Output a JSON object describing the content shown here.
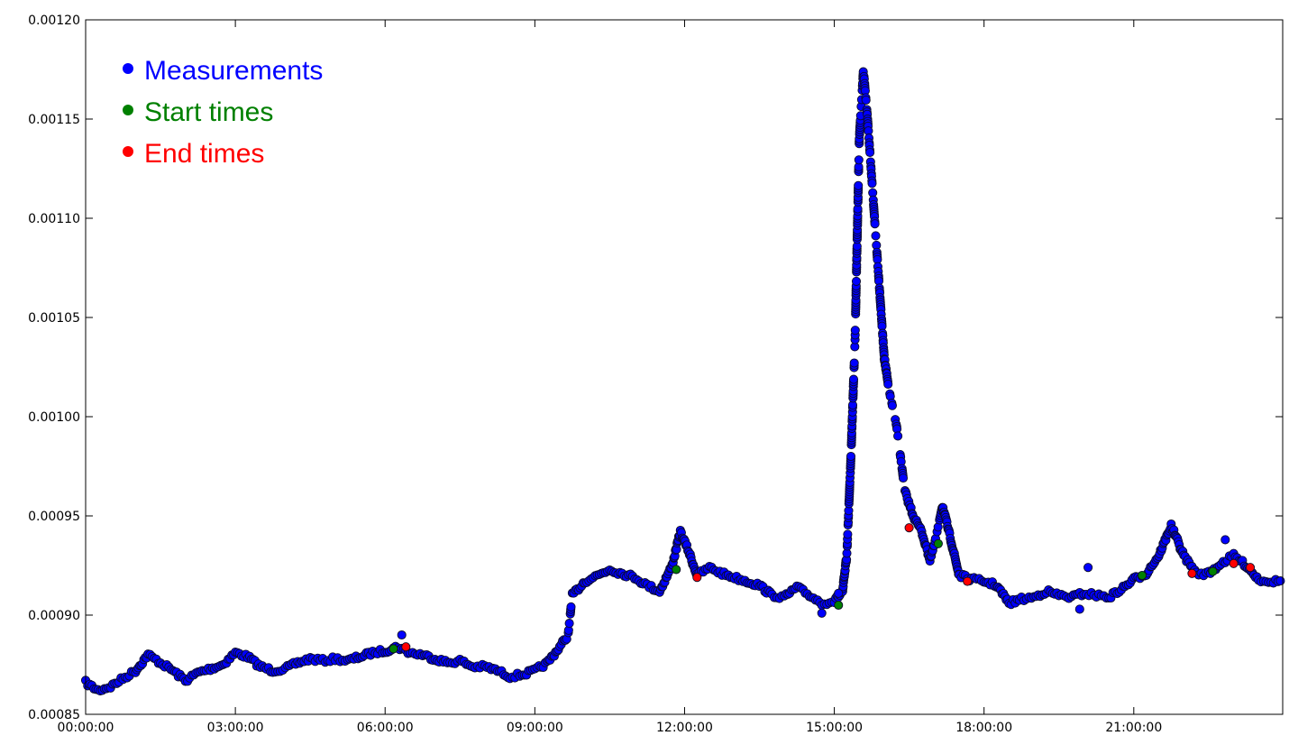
{
  "chart_data": {
    "type": "scatter",
    "title": "",
    "xlabel": "",
    "ylabel": "",
    "x_format": "HH:MM:SS",
    "xlim": [
      "00:00:00",
      "23:59:00"
    ],
    "ylim": [
      0.00085,
      0.0012
    ],
    "grid": false,
    "legend_position": "upper-left",
    "x_ticks": [
      "00:00:00",
      "03:00:00",
      "06:00:00",
      "09:00:00",
      "12:00:00",
      "15:00:00",
      "18:00:00",
      "21:00:00"
    ],
    "y_ticks": [
      "0.00085",
      "0.00090",
      "0.00095",
      "0.00100",
      "0.00105",
      "0.00110",
      "0.00115",
      "0.00120"
    ],
    "series": [
      {
        "name": "Measurements",
        "color": "#0000ff",
        "profile": [
          [
            "00:00:00",
            0.000866
          ],
          [
            "00:15:00",
            0.000862
          ],
          [
            "00:30:00",
            0.000864
          ],
          [
            "00:45:00",
            0.000868
          ],
          [
            "01:00:00",
            0.000872
          ],
          [
            "01:15:00",
            0.00088
          ],
          [
            "01:30:00",
            0.000876
          ],
          [
            "01:45:00",
            0.000872
          ],
          [
            "02:00:00",
            0.000867
          ],
          [
            "02:15:00",
            0.000871
          ],
          [
            "02:30:00",
            0.000873
          ],
          [
            "02:45:00",
            0.000875
          ],
          [
            "03:00:00",
            0.000881
          ],
          [
            "03:15:00",
            0.000879
          ],
          [
            "03:30:00",
            0.000874
          ],
          [
            "03:45:00",
            0.000872
          ],
          [
            "04:00:00",
            0.000873
          ],
          [
            "04:15:00",
            0.000876
          ],
          [
            "04:30:00",
            0.000878
          ],
          [
            "04:45:00",
            0.000877
          ],
          [
            "05:00:00",
            0.000878
          ],
          [
            "05:15:00",
            0.000877
          ],
          [
            "05:30:00",
            0.000879
          ],
          [
            "05:45:00",
            0.000881
          ],
          [
            "06:00:00",
            0.000882
          ],
          [
            "06:15:00",
            0.000884
          ],
          [
            "06:30:00",
            0.000881
          ],
          [
            "06:45:00",
            0.00088
          ],
          [
            "07:00:00",
            0.000878
          ],
          [
            "07:15:00",
            0.000876
          ],
          [
            "07:30:00",
            0.000877
          ],
          [
            "07:45:00",
            0.000874
          ],
          [
            "08:00:00",
            0.000874
          ],
          [
            "08:15:00",
            0.000872
          ],
          [
            "08:30:00",
            0.000869
          ],
          [
            "08:45:00",
            0.00087
          ],
          [
            "09:00:00",
            0.000872
          ],
          [
            "09:15:00",
            0.000876
          ],
          [
            "09:30:00",
            0.000884
          ],
          [
            "09:40:00",
            0.00089
          ],
          [
            "09:45:00",
            0.00091
          ],
          [
            "10:00:00",
            0.000917
          ],
          [
            "10:15:00",
            0.00092
          ],
          [
            "10:30:00",
            0.000923
          ],
          [
            "10:45:00",
            0.000921
          ],
          [
            "11:00:00",
            0.000919
          ],
          [
            "11:15:00",
            0.000915
          ],
          [
            "11:30:00",
            0.000912
          ],
          [
            "11:45:00",
            0.000925
          ],
          [
            "11:55:00",
            0.000942
          ],
          [
            "12:05:00",
            0.000932
          ],
          [
            "12:15:00",
            0.00092
          ],
          [
            "12:30:00",
            0.000924
          ],
          [
            "12:45:00",
            0.000921
          ],
          [
            "13:00:00",
            0.000919
          ],
          [
            "13:15:00",
            0.000917
          ],
          [
            "13:30:00",
            0.000915
          ],
          [
            "13:45:00",
            0.00091
          ],
          [
            "14:00:00",
            0.000909
          ],
          [
            "14:15:00",
            0.000914
          ],
          [
            "14:30:00",
            0.00091
          ],
          [
            "14:45:00",
            0.000906
          ],
          [
            "15:00:00",
            0.000907
          ],
          [
            "15:10:00",
            0.000912
          ],
          [
            "15:15:00",
            0.00093
          ],
          [
            "15:20:00",
            0.00098
          ],
          [
            "15:25:00",
            0.00104
          ],
          [
            "15:30:00",
            0.00114
          ],
          [
            "15:35:00",
            0.001175
          ],
          [
            "15:40:00",
            0.00115
          ],
          [
            "15:45:00",
            0.00112
          ],
          [
            "15:50:00",
            0.00109
          ],
          [
            "15:55:00",
            0.00106
          ],
          [
            "16:00:00",
            0.00103
          ],
          [
            "16:05:00",
            0.001015
          ],
          [
            "16:15:00",
            0.000995
          ],
          [
            "16:25:00",
            0.000962
          ],
          [
            "16:35:00",
            0.00095
          ],
          [
            "16:45:00",
            0.000942
          ],
          [
            "16:55:00",
            0.000928
          ],
          [
            "17:00:00",
            0.000935
          ],
          [
            "17:10:00",
            0.000955
          ],
          [
            "17:20:00",
            0.000938
          ],
          [
            "17:30:00",
            0.00092
          ],
          [
            "17:45:00",
            0.000918
          ],
          [
            "18:00:00",
            0.000917
          ],
          [
            "18:15:00",
            0.000915
          ],
          [
            "18:30:00",
            0.000906
          ],
          [
            "18:45:00",
            0.000908
          ],
          [
            "19:00:00",
            0.000909
          ],
          [
            "19:15:00",
            0.000912
          ],
          [
            "19:30:00",
            0.00091
          ],
          [
            "19:45:00",
            0.000909
          ],
          [
            "20:00:00",
            0.000911
          ],
          [
            "20:15:00",
            0.00091
          ],
          [
            "20:30:00",
            0.000909
          ],
          [
            "20:45:00",
            0.000913
          ],
          [
            "21:00:00",
            0.000918
          ],
          [
            "21:15:00",
            0.000921
          ],
          [
            "21:30:00",
            0.00093
          ],
          [
            "21:45:00",
            0.000945
          ],
          [
            "22:00:00",
            0.00093
          ],
          [
            "22:15:00",
            0.000921
          ],
          [
            "22:30:00",
            0.000921
          ],
          [
            "22:45:00",
            0.000926
          ],
          [
            "23:00:00",
            0.00093
          ],
          [
            "23:15:00",
            0.000925
          ],
          [
            "23:30:00",
            0.000918
          ],
          [
            "23:45:00",
            0.000917
          ],
          [
            "23:59:00",
            0.000917
          ]
        ],
        "outliers": [
          [
            "06:20:00",
            0.00089
          ],
          [
            "14:45:00",
            0.000901
          ],
          [
            "19:55:00",
            0.000903
          ],
          [
            "20:05:00",
            0.000924
          ],
          [
            "22:50:00",
            0.000938
          ],
          [
            "15:05:00",
            0.000911
          ]
        ]
      },
      {
        "name": "Start times",
        "color": "#008000",
        "points": [
          [
            "06:10:00",
            0.000883
          ],
          [
            "11:50:00",
            0.000923
          ],
          [
            "15:05:00",
            0.000905
          ],
          [
            "17:05:00",
            0.000936
          ],
          [
            "21:10:00",
            0.00092
          ],
          [
            "22:35:00",
            0.000922
          ]
        ]
      },
      {
        "name": "End times",
        "color": "#ff0000",
        "points": [
          [
            "06:25:00",
            0.000884
          ],
          [
            "12:15:00",
            0.000919
          ],
          [
            "16:30:00",
            0.000944
          ],
          [
            "17:40:00",
            0.000917
          ],
          [
            "22:10:00",
            0.000921
          ],
          [
            "23:00:00",
            0.000926
          ],
          [
            "23:20:00",
            0.000924
          ]
        ]
      }
    ]
  }
}
